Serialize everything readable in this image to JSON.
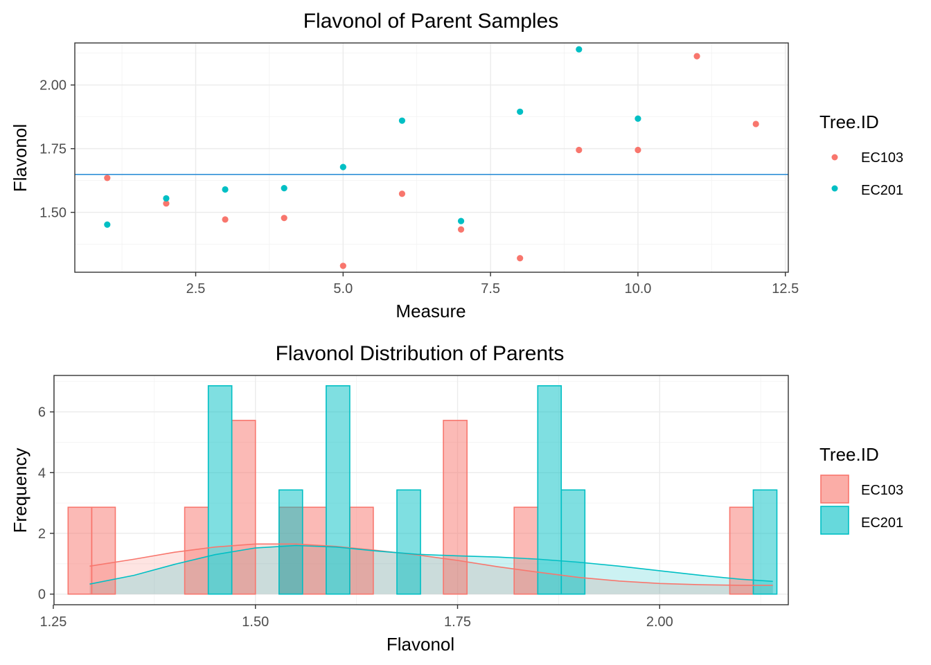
{
  "colors": {
    "EC103": "#F8766D",
    "EC201": "#00BFC4",
    "mean_line": "#2f8fd8"
  },
  "chart_data": [
    {
      "type": "scatter",
      "title": "Flavonol of Parent Samples",
      "xlabel": "Measure",
      "ylabel": "Flavonol",
      "xlim": [
        0.45,
        12.55
      ],
      "ylim": [
        1.265,
        2.165
      ],
      "x_ticks": [
        2.5,
        5.0,
        7.5,
        10.0,
        12.5
      ],
      "x_tick_labels": [
        "2.5",
        "5.0",
        "7.5",
        "10.0",
        "12.5"
      ],
      "y_ticks": [
        1.5,
        1.75,
        2.0
      ],
      "y_tick_labels": [
        "1.50",
        "1.75",
        "2.00"
      ],
      "grid": true,
      "hline": 1.649,
      "legend": {
        "title": "Tree.ID",
        "position": "right",
        "labels": [
          "EC103",
          "EC201"
        ]
      },
      "series": [
        {
          "name": "EC103",
          "x": [
            1,
            2,
            3,
            4,
            5,
            6,
            7,
            8,
            9,
            10,
            11,
            12
          ],
          "y": [
            1.635,
            1.535,
            1.472,
            1.478,
            1.29,
            1.573,
            1.433,
            1.32,
            1.745,
            1.745,
            2.113,
            1.847
          ]
        },
        {
          "name": "EC201",
          "x": [
            1,
            2,
            3,
            4,
            5,
            6,
            7,
            8,
            9,
            10
          ],
          "y": [
            1.452,
            1.555,
            1.59,
            1.595,
            1.678,
            1.86,
            1.466,
            1.895,
            2.14,
            1.868
          ]
        }
      ]
    },
    {
      "type": "bar",
      "subtype": "histogram with density",
      "title": "Flavonol Distribution of Parents",
      "xlabel": "Flavonol",
      "ylabel": "Frequency",
      "xlim": [
        1.2509,
        2.1591
      ],
      "ylim": [
        -0.35,
        7.2
      ],
      "x_ticks": [
        1.25,
        1.5,
        1.75,
        2.0
      ],
      "x_tick_labels": [
        "1.25",
        "1.50",
        "1.75",
        "2.00"
      ],
      "y_ticks": [
        0,
        2,
        4,
        6
      ],
      "y_tick_labels": [
        "0",
        "2",
        "4",
        "6"
      ],
      "grid": true,
      "legend": {
        "title": "Tree.ID",
        "position": "right",
        "labels": [
          "EC103",
          "EC201"
        ]
      },
      "series": [
        {
          "name": "EC103",
          "bins": [
            {
              "x0": 1.2683,
              "x1": 1.2975,
              "y": 2.86
            },
            {
              "x0": 1.2975,
              "x1": 1.3267,
              "y": 2.86
            },
            {
              "x0": 1.4125,
              "x1": 1.4417,
              "y": 2.86
            },
            {
              "x0": 1.4708,
              "x1": 1.5,
              "y": 5.72
            },
            {
              "x0": 1.5292,
              "x1": 1.5583,
              "y": 2.86
            },
            {
              "x0": 1.5583,
              "x1": 1.5875,
              "y": 2.86
            },
            {
              "x0": 1.6167,
              "x1": 1.6458,
              "y": 2.86
            },
            {
              "x0": 1.7325,
              "x1": 1.7617,
              "y": 5.72
            },
            {
              "x0": 1.82,
              "x1": 1.8492,
              "y": 2.86
            },
            {
              "x0": 2.0867,
              "x1": 2.1158,
              "y": 2.86
            }
          ],
          "density": {
            "x": [
              1.295,
              1.35,
              1.4,
              1.45,
              1.5,
              1.55,
              1.6,
              1.65,
              1.7,
              1.75,
              1.8,
              1.85,
              1.9,
              1.95,
              2.0,
              2.05,
              2.1,
              2.14
            ],
            "y": [
              0.92,
              1.15,
              1.38,
              1.55,
              1.65,
              1.65,
              1.57,
              1.44,
              1.29,
              1.11,
              0.9,
              0.72,
              0.55,
              0.43,
              0.35,
              0.31,
              0.29,
              0.29
            ]
          }
        },
        {
          "name": "EC201",
          "bins": [
            {
              "x0": 1.4417,
              "x1": 1.4708,
              "y": 6.86
            },
            {
              "x0": 1.5292,
              "x1": 1.5583,
              "y": 3.43
            },
            {
              "x0": 1.5875,
              "x1": 1.6167,
              "y": 6.86
            },
            {
              "x0": 1.675,
              "x1": 1.7042,
              "y": 3.43
            },
            {
              "x0": 1.8492,
              "x1": 1.8783,
              "y": 6.86
            },
            {
              "x0": 1.8783,
              "x1": 1.9075,
              "y": 3.43
            },
            {
              "x0": 2.1158,
              "x1": 2.145,
              "y": 3.43
            }
          ],
          "density": {
            "x": [
              1.295,
              1.35,
              1.4,
              1.45,
              1.5,
              1.55,
              1.6,
              1.65,
              1.7,
              1.75,
              1.8,
              1.85,
              1.9,
              1.95,
              2.0,
              2.05,
              2.1,
              2.14
            ],
            "y": [
              0.33,
              0.62,
              0.98,
              1.3,
              1.52,
              1.6,
              1.55,
              1.42,
              1.31,
              1.26,
              1.22,
              1.15,
              1.05,
              0.92,
              0.77,
              0.62,
              0.49,
              0.42
            ]
          }
        }
      ]
    }
  ]
}
